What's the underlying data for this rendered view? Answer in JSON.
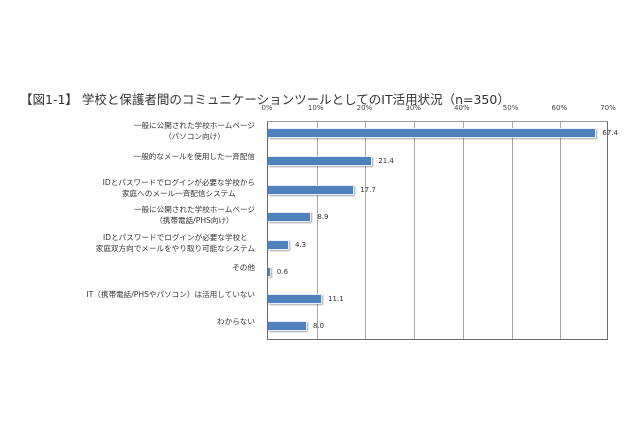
{
  "title": "【図1-1】 学校と保護者間のコミュニケーションツールとしてのIT活用状況（n=350）",
  "axis": {
    "ticks": [
      "0%",
      "10%",
      "20%",
      "30%",
      "40%",
      "50%",
      "60%",
      "70%"
    ]
  },
  "categories": [
    {
      "line1": "一般に公開された学校ホームページ",
      "line2": "（パソコン向け）"
    },
    {
      "line1": "一般的なメールを使用した一斉配信",
      "line2": ""
    },
    {
      "line1": "IDとパスワードでログインが必要な学校から",
      "line2": "家庭へのメール一斉配信システム"
    },
    {
      "line1": "一般に公開された学校ホームページ",
      "line2": "（携帯電話/PHS向け）"
    },
    {
      "line1": "IDとパスワードでログインが必要な学校と",
      "line2": "家庭双方向でメールをやり取り可能なシステム"
    },
    {
      "line1": "その他",
      "line2": ""
    },
    {
      "line1": "IT（携帯電話/PHSやパソコン）は活用していない",
      "line2": ""
    },
    {
      "line1": "わからない",
      "line2": ""
    }
  ],
  "values_text": [
    "67.4",
    "21.4",
    "17.7",
    "8.9",
    "4.3",
    "0.6",
    "11.1",
    "8.0"
  ],
  "colors": {
    "bar": "#4f81bd",
    "grid": "#a8a8a8",
    "frame": "#6b6b6b"
  },
  "chart_data": {
    "type": "bar",
    "orientation": "horizontal",
    "title": "【図1-1】 学校と保護者間のコミュニケーションツールとしてのIT活用状況（n=350）",
    "categories": [
      "一般に公開された学校ホームページ（パソコン向け）",
      "一般的なメールを使用した一斉配信",
      "IDとパスワードでログインが必要な学校から家庭へのメール一斉配信システム",
      "一般に公開された学校ホームページ（携帯電話/PHS向け）",
      "IDとパスワードでログインが必要な学校と家庭双方向でメールをやり取り可能なシステム",
      "その他",
      "IT（携帯電話/PHSやパソコン）は活用していない",
      "わからない"
    ],
    "values": [
      67.4,
      21.4,
      17.7,
      8.9,
      4.3,
      0.6,
      11.1,
      8.0
    ],
    "xlabel": "",
    "ylabel": "",
    "xlim": [
      0,
      70
    ],
    "x_tick_labels": [
      "0%",
      "10%",
      "20%",
      "30%",
      "40%",
      "50%",
      "60%",
      "70%"
    ],
    "x_axis_position": "top",
    "grid": true,
    "legend": false,
    "data_labels": true
  }
}
